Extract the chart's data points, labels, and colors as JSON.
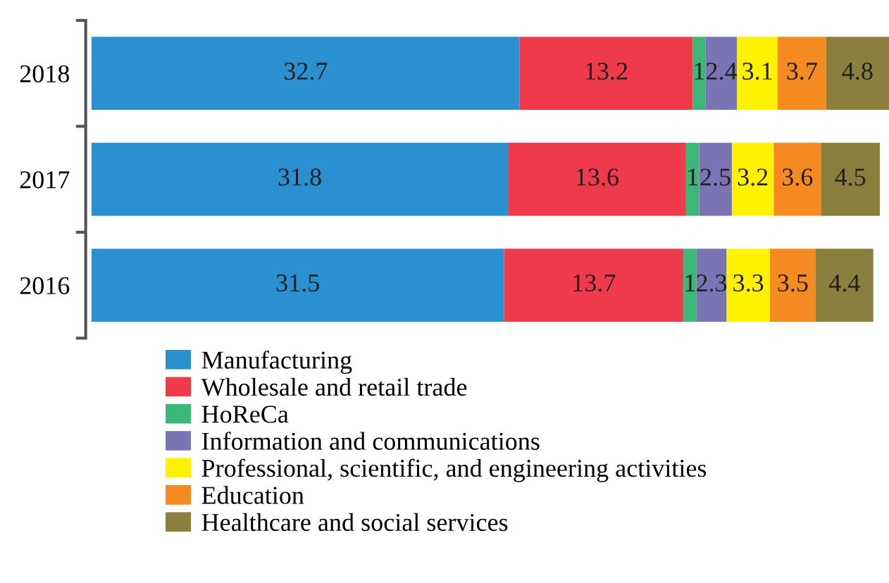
{
  "chart_data": {
    "type": "bar",
    "orientation": "horizontal",
    "stacked": true,
    "data_labels": true,
    "grid": false,
    "legend": "bottom",
    "categories": [
      "2018",
      "2017",
      "2016"
    ],
    "series": [
      {
        "name": "Manufacturing",
        "color": "#2a90d0",
        "values": [
          32.7,
          31.8,
          31.5
        ]
      },
      {
        "name": "Wholesale and retail trade",
        "color": "#ee3a4a",
        "values": [
          13.2,
          13.6,
          13.7
        ]
      },
      {
        "name": "HoReCa",
        "color": "#3bb878",
        "values": [
          1,
          1,
          1
        ]
      },
      {
        "name": "Information and communications",
        "color": "#7b74b4",
        "values": [
          2.4,
          2.5,
          2.3
        ]
      },
      {
        "name": "Professional, scientific, and engineering activities",
        "color": "#fff200",
        "values": [
          3.1,
          3.2,
          3.3
        ]
      },
      {
        "name": "Education",
        "color": "#f58a20",
        "values": [
          3.7,
          3.6,
          3.5
        ]
      },
      {
        "name": "Healthcare and social services",
        "color": "#8a7f3c",
        "values": [
          4.8,
          4.5,
          4.4
        ]
      }
    ]
  }
}
